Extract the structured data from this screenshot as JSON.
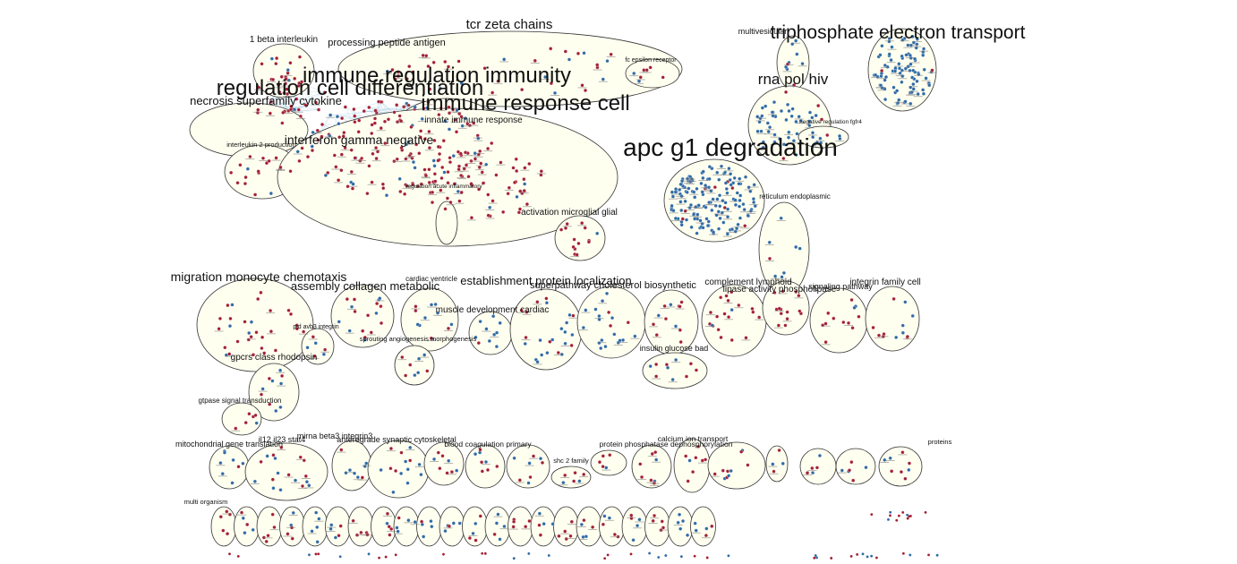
{
  "colors": {
    "cluster_fill": "#fffff0",
    "cluster_stroke": "#333333",
    "node_up": "#a31f34",
    "node_down": "#2f6aa5",
    "edge": "#9ec5dd",
    "label": "#111111"
  },
  "clusters": [
    {
      "label": "tcr zeta chains"
    },
    {
      "label": "1 beta interleukin"
    },
    {
      "label": "processing peptide antigen"
    },
    {
      "label": "fc epsilon receptor"
    },
    {
      "label": "immune regulation immunity"
    },
    {
      "label": "regulation cell differentiation"
    },
    {
      "label": "immune response cell"
    },
    {
      "label": "necrosis superfamily cytokine"
    },
    {
      "label": "innate immune response"
    },
    {
      "label": "interferon gamma negative"
    },
    {
      "label": "interleukin 2 production"
    },
    {
      "label": "regulation acute inflammatory"
    },
    {
      "label": "activation microglial glial"
    },
    {
      "label": "multivesicular"
    },
    {
      "label": "triphosphate electron transport"
    },
    {
      "label": "rna pol hiv"
    },
    {
      "label": "negative regulation fgfr4"
    },
    {
      "label": "apc g1 degradation"
    },
    {
      "label": "reticulum endoplasmic"
    },
    {
      "label": "migration monocyte chemotaxis"
    },
    {
      "label": "assembly collagen metabolic"
    },
    {
      "label": "cardiac ventricle"
    },
    {
      "label": "establishment protein localization"
    },
    {
      "label": "superpathway cholesterol biosynthetic"
    },
    {
      "label": "complement lymphoid"
    },
    {
      "label": "lipase activity phospholipase"
    },
    {
      "label": "signaling pathway"
    },
    {
      "label": "integrin family cell"
    },
    {
      "label": "muscle development cardiac"
    },
    {
      "label": "pid avb3 integrin"
    },
    {
      "label": "sprouting angiogenesis morphogenesis"
    },
    {
      "label": "insulin glucose bad"
    },
    {
      "label": "gpcrs class rhodopsin"
    },
    {
      "label": "gtpase signal transduction"
    },
    {
      "label": "il12 il23 stat4"
    },
    {
      "label": "mirna beta3 integrin3"
    },
    {
      "label": "mitochondrial gene translation"
    },
    {
      "label": "anterograde synaptic cytoskeletal"
    },
    {
      "label": "blood coagulation primary"
    },
    {
      "label": "protein phosphatase dephosphorylation"
    },
    {
      "label": "shc 2 family"
    },
    {
      "label": "calcium ion transport"
    },
    {
      "label": "proteins"
    },
    {
      "label": "multi organism"
    }
  ]
}
